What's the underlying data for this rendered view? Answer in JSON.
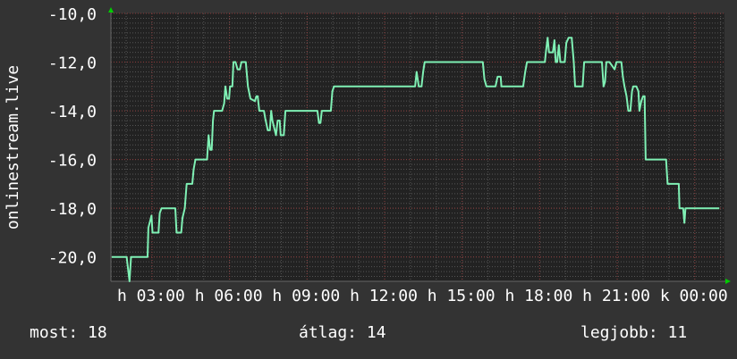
{
  "chart_data": {
    "type": "line",
    "ylabel": "onlinestream.live",
    "xlabel": "",
    "ylim": [
      -21,
      -10
    ],
    "xlim_hours": [
      1.41,
      25.15
    ],
    "grid": true,
    "y_ticks": [
      {
        "value": -10,
        "label": "-10,0"
      },
      {
        "value": -12,
        "label": "-12,0"
      },
      {
        "value": -14,
        "label": "-14,0"
      },
      {
        "value": -16,
        "label": "-16,0"
      },
      {
        "value": -18,
        "label": "-18,0"
      },
      {
        "value": -20,
        "label": "-20,0"
      }
    ],
    "x_ticks": [
      {
        "hour": 3,
        "label": "h 03:00"
      },
      {
        "hour": 6,
        "label": "h 06:00"
      },
      {
        "hour": 9,
        "label": "h 09:00"
      },
      {
        "hour": 12,
        "label": "h 12:00"
      },
      {
        "hour": 15,
        "label": "h 15:00"
      },
      {
        "hour": 18,
        "label": "h 18:00"
      },
      {
        "hour": 21,
        "label": "h 21:00"
      },
      {
        "hour": 24,
        "label": "k 00:00"
      }
    ],
    "series": [
      {
        "color": "#7ff0b4",
        "points": [
          [
            1.44,
            -20
          ],
          [
            2.02,
            -20
          ],
          [
            2.13,
            -21
          ],
          [
            2.19,
            -20
          ],
          [
            2.83,
            -20
          ],
          [
            2.86,
            -18.8
          ],
          [
            2.98,
            -18.3
          ],
          [
            3.02,
            -19
          ],
          [
            3.25,
            -19
          ],
          [
            3.3,
            -18.2
          ],
          [
            3.37,
            -18
          ],
          [
            3.9,
            -18
          ],
          [
            3.95,
            -19
          ],
          [
            4.13,
            -19
          ],
          [
            4.18,
            -18.4
          ],
          [
            4.27,
            -18
          ],
          [
            4.34,
            -17
          ],
          [
            4.56,
            -17
          ],
          [
            4.61,
            -16.4
          ],
          [
            4.68,
            -16
          ],
          [
            5.13,
            -16
          ],
          [
            5.19,
            -15
          ],
          [
            5.25,
            -15.6
          ],
          [
            5.31,
            -15.6
          ],
          [
            5.36,
            -14.4
          ],
          [
            5.4,
            -14
          ],
          [
            5.71,
            -14
          ],
          [
            5.79,
            -13.7
          ],
          [
            5.84,
            -13
          ],
          [
            5.91,
            -13.5
          ],
          [
            5.98,
            -13.5
          ],
          [
            6.02,
            -13
          ],
          [
            6.11,
            -13
          ],
          [
            6.15,
            -12
          ],
          [
            6.23,
            -12
          ],
          [
            6.31,
            -12.3
          ],
          [
            6.4,
            -12.3
          ],
          [
            6.46,
            -12
          ],
          [
            6.63,
            -12
          ],
          [
            6.71,
            -13
          ],
          [
            6.81,
            -13.5
          ],
          [
            6.98,
            -13.6
          ],
          [
            7.04,
            -13.4
          ],
          [
            7.09,
            -13.4
          ],
          [
            7.15,
            -14
          ],
          [
            7.33,
            -14
          ],
          [
            7.38,
            -14.3
          ],
          [
            7.48,
            -14.8
          ],
          [
            7.56,
            -14.8
          ],
          [
            7.61,
            -14
          ],
          [
            7.66,
            -14.4
          ],
          [
            7.75,
            -14.8
          ],
          [
            7.8,
            -15
          ],
          [
            7.86,
            -14.4
          ],
          [
            7.94,
            -14.4
          ],
          [
            7.98,
            -15
          ],
          [
            8.1,
            -15
          ],
          [
            8.16,
            -14
          ],
          [
            9.4,
            -14
          ],
          [
            9.46,
            -14.5
          ],
          [
            9.52,
            -14.5
          ],
          [
            9.57,
            -14
          ],
          [
            9.92,
            -14
          ],
          [
            9.98,
            -13.2
          ],
          [
            10.04,
            -13
          ],
          [
            13.18,
            -13
          ],
          [
            13.24,
            -12.4
          ],
          [
            13.32,
            -13
          ],
          [
            13.43,
            -13
          ],
          [
            13.49,
            -12.4
          ],
          [
            13.55,
            -12
          ],
          [
            15.8,
            -12
          ],
          [
            15.86,
            -12.7
          ],
          [
            15.94,
            -13
          ],
          [
            16.29,
            -13
          ],
          [
            16.37,
            -12.6
          ],
          [
            16.49,
            -12.6
          ],
          [
            16.52,
            -13
          ],
          [
            17.36,
            -13
          ],
          [
            17.44,
            -12.4
          ],
          [
            17.51,
            -12
          ],
          [
            18.2,
            -12
          ],
          [
            18.24,
            -11.6
          ],
          [
            18.31,
            -11
          ],
          [
            18.36,
            -11.6
          ],
          [
            18.51,
            -11.6
          ],
          [
            18.57,
            -11.1
          ],
          [
            18.62,
            -12
          ],
          [
            18.68,
            -12
          ],
          [
            18.74,
            -11.3
          ],
          [
            18.8,
            -12
          ],
          [
            18.97,
            -12
          ],
          [
            19.03,
            -11.2
          ],
          [
            19.12,
            -11
          ],
          [
            19.24,
            -11
          ],
          [
            19.32,
            -12
          ],
          [
            19.37,
            -13
          ],
          [
            19.66,
            -13
          ],
          [
            19.72,
            -12
          ],
          [
            20.41,
            -12
          ],
          [
            20.47,
            -13
          ],
          [
            20.53,
            -12.8
          ],
          [
            20.58,
            -12
          ],
          [
            20.7,
            -12
          ],
          [
            20.9,
            -12.3
          ],
          [
            20.97,
            -12
          ],
          [
            21.16,
            -12
          ],
          [
            21.22,
            -12.6
          ],
          [
            21.28,
            -13
          ],
          [
            21.36,
            -13.4
          ],
          [
            21.43,
            -14
          ],
          [
            21.51,
            -14
          ],
          [
            21.57,
            -13.2
          ],
          [
            21.62,
            -13
          ],
          [
            21.74,
            -13
          ],
          [
            21.82,
            -13.2
          ],
          [
            21.86,
            -14
          ],
          [
            21.93,
            -13.6
          ],
          [
            22.0,
            -13.4
          ],
          [
            22.06,
            -13.4
          ],
          [
            22.1,
            -16
          ],
          [
            22.89,
            -16
          ],
          [
            22.95,
            -17
          ],
          [
            23.38,
            -17
          ],
          [
            23.41,
            -18
          ],
          [
            23.55,
            -18
          ],
          [
            23.6,
            -18.6
          ],
          [
            23.64,
            -18
          ],
          [
            24.95,
            -18
          ]
        ]
      }
    ],
    "colors": {
      "background": "#333333",
      "plot_background": "#222222",
      "major_grid": "#8a3b3b",
      "minor_grid": "#555555",
      "arrow": "#00cc00",
      "line": "#7ff0b4"
    }
  },
  "legend": {
    "current": "most: 18",
    "average": "átlag: 14",
    "max": "legjobb: 11"
  }
}
